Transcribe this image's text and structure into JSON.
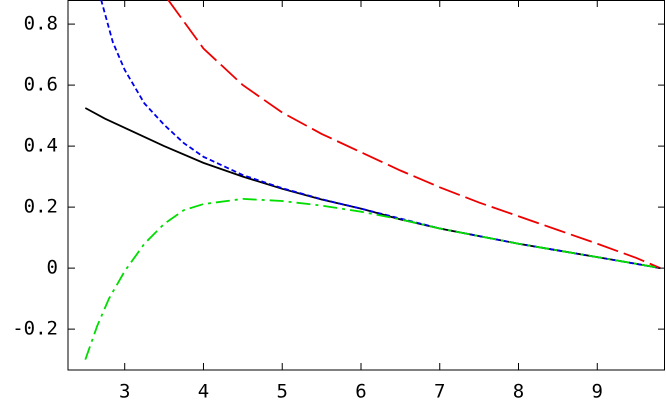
{
  "chart_data": {
    "type": "line",
    "xlim": [
      2.28,
      9.86
    ],
    "xticks": [
      3,
      4,
      5,
      6,
      7,
      8,
      9
    ],
    "ylim": [
      -0.334,
      0.879
    ],
    "yticks": [
      0.8,
      0.6,
      0.4,
      0.2,
      0,
      -0.2
    ],
    "series": [
      {
        "color": "#000000",
        "style": "solid",
        "x": [
          2.5,
          2.75,
          3,
          3.5,
          4,
          4.5,
          5,
          5.5,
          6,
          6.5,
          7,
          7.5,
          8,
          8.5,
          9,
          9.5,
          9.8
        ],
        "values": [
          0.525,
          0.49,
          0.46,
          0.4,
          0.345,
          0.3,
          0.26,
          0.225,
          0.195,
          0.16,
          0.13,
          0.105,
          0.08,
          0.058,
          0.036,
          0.014,
          0
        ]
      },
      {
        "color": "#0000ee",
        "style": "dashed",
        "x": [
          2.7,
          2.85,
          3,
          3.25,
          3.5,
          3.75,
          4,
          4.5,
          5,
          5.5,
          6,
          7,
          8,
          9,
          9.8
        ],
        "values": [
          0.88,
          0.74,
          0.65,
          0.54,
          0.47,
          0.41,
          0.365,
          0.305,
          0.262,
          0.226,
          0.195,
          0.13,
          0.08,
          0.036,
          0
        ]
      },
      {
        "color": "#ee0000",
        "style": "long-dash",
        "x": [
          3.55,
          4,
          4.5,
          5,
          5.5,
          6,
          6.5,
          7,
          7.5,
          8,
          8.5,
          9,
          9.5,
          9.8
        ],
        "values": [
          0.88,
          0.72,
          0.6,
          0.51,
          0.44,
          0.38,
          0.32,
          0.265,
          0.215,
          0.17,
          0.125,
          0.08,
          0.033,
          0
        ]
      },
      {
        "color": "#00dd00",
        "style": "dash-dot",
        "x": [
          2.5,
          2.65,
          2.8,
          3,
          3.25,
          3.5,
          3.75,
          4,
          4.5,
          5,
          5.5,
          6,
          6.5,
          7,
          7.5,
          8,
          8.5,
          9,
          9.5,
          9.8
        ],
        "values": [
          -0.3,
          -0.19,
          -0.1,
          -0.01,
          0.08,
          0.145,
          0.19,
          0.21,
          0.227,
          0.22,
          0.205,
          0.185,
          0.16,
          0.13,
          0.105,
          0.08,
          0.058,
          0.036,
          0.014,
          0
        ]
      }
    ]
  }
}
